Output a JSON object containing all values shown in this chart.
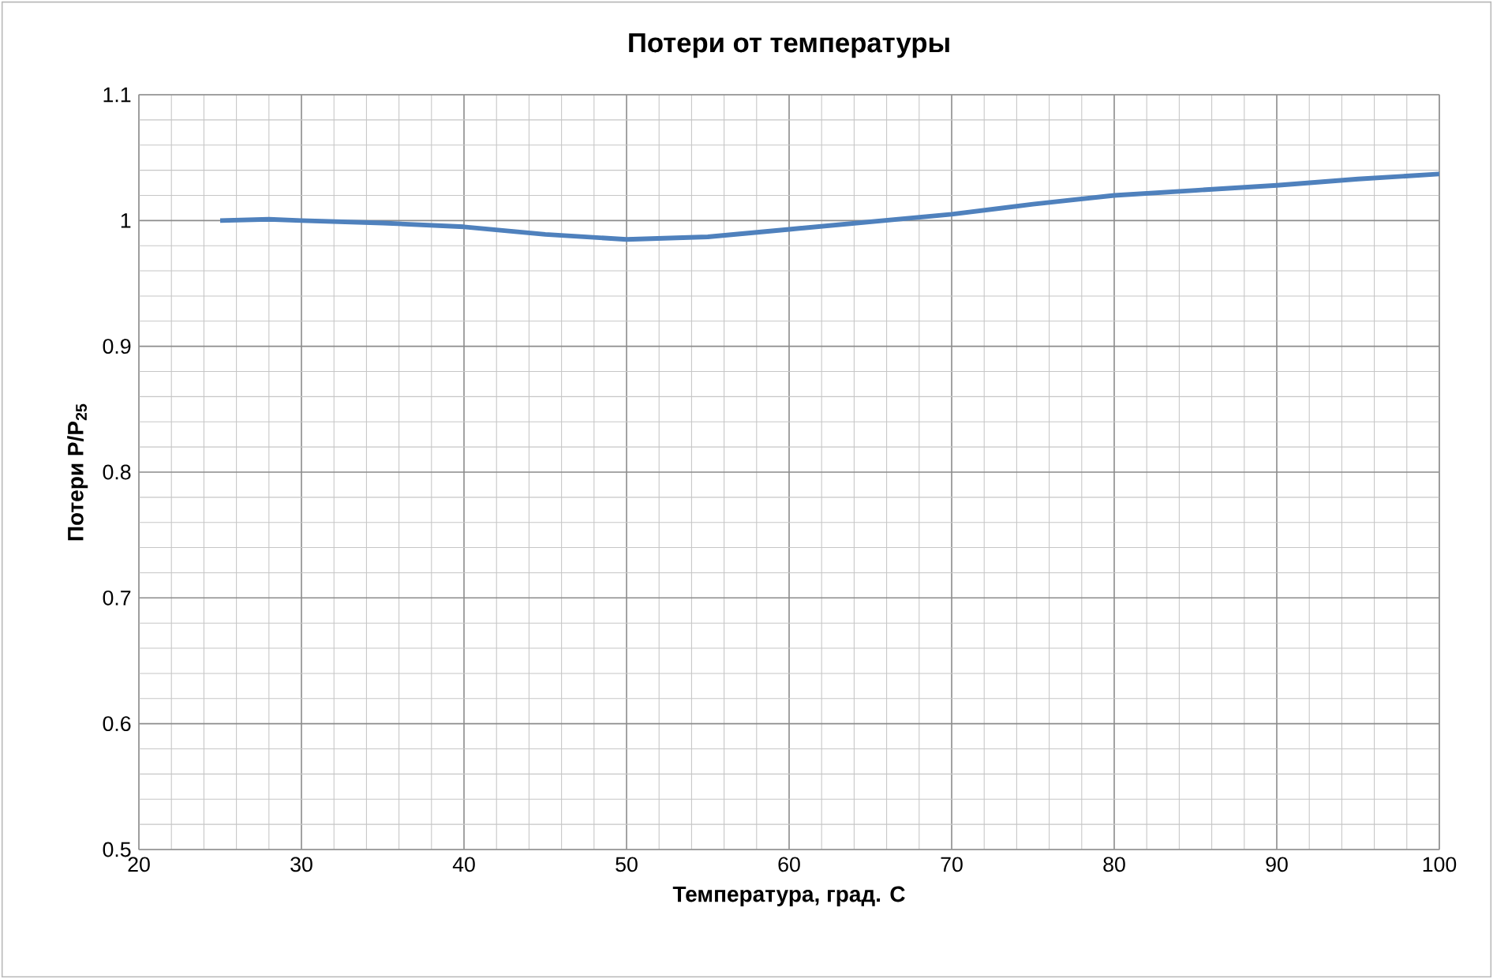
{
  "chart_data": {
    "type": "line",
    "title": "Потери от температуры",
    "xlabel": "Температура, град. С",
    "ylabel": "Потери P/P$_{25}$",
    "series": [
      {
        "color": "#4f81bd",
        "x": [
          25,
          28,
          30,
          35,
          40,
          45,
          50,
          55,
          60,
          65,
          70,
          75,
          80,
          85,
          90,
          95,
          100
        ],
        "values": [
          1.0,
          1.001,
          1.0,
          0.998,
          0.995,
          0.989,
          0.985,
          0.987,
          0.993,
          0.999,
          1.005,
          1.013,
          1.02,
          1.024,
          1.028,
          1.033,
          1.037
        ]
      }
    ],
    "xlim": [
      20,
      100
    ],
    "xticks": [
      20,
      30,
      40,
      50,
      60,
      70,
      80,
      90,
      100
    ],
    "ylim": [
      0.5,
      1.1
    ],
    "yticks": [
      0.5,
      0.6,
      0.7,
      0.8,
      0.9,
      1,
      1.1
    ],
    "grid": true,
    "marker": "none",
    "line_style": "solid"
  }
}
